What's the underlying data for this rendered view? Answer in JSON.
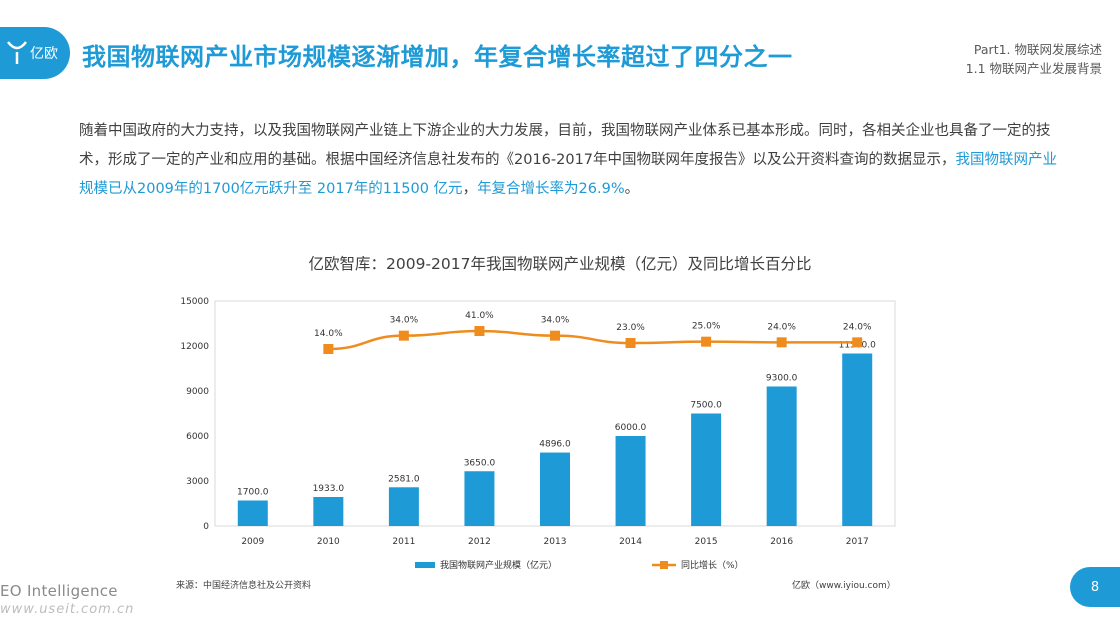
{
  "brand": {
    "logo_text": "亿欧"
  },
  "header": {
    "title": "我国物联网产业市场规模逐渐增加，年复合增长率超过了四分之一",
    "section_line1": "Part1. 物联网发展综述",
    "section_line2": "1.1 物联网产业发展背景"
  },
  "body": {
    "p1": "随着中国政府的大力支持，以及我国物联网产业链上下游企业的大力发展，目前，我国物联网产业体系已基本形成。同时，各相关企业也具备了一定的技术，形成了一定的产业和应用的基础。根据中国经济信息社发布的《2016-2017年中国物联网年度报告》以及公开资料查询的数据显示，",
    "highlight1": "我国物联网产业规模已从2009年的1700亿元跃升至 2017年的11500 亿元",
    "sep": "，",
    "highlight2": "年复合增长率为26.9%",
    "end": "。"
  },
  "chart_data": {
    "type": "bar",
    "title": "亿欧智库：2009-2017年我国物联网产业规模（亿元）及同比增长百分比",
    "categories": [
      "2009",
      "2010",
      "2011",
      "2012",
      "2013",
      "2014",
      "2015",
      "2016",
      "2017"
    ],
    "y_ticks": [
      "0",
      "3000",
      "6000",
      "9000",
      "12000",
      "15000"
    ],
    "ylim": [
      0,
      15000
    ],
    "series": [
      {
        "name": "我国物联网产业规模（亿元）",
        "type": "bar",
        "color": "#1e9ad6",
        "values": [
          1700.0,
          1933.0,
          2581.0,
          3650.0,
          4896.0,
          6000.0,
          7500.0,
          9300.0,
          11500.0
        ],
        "labels": [
          "1700.0",
          "1933.0",
          "2581.0",
          "3650.0",
          "4896.0",
          "6000.0",
          "7500.0",
          "9300.0",
          "11500.0"
        ]
      },
      {
        "name": "同比增长（%）",
        "type": "line",
        "color": "#f08c1e",
        "values": [
          null,
          14.0,
          34.0,
          41.0,
          34.0,
          23.0,
          25.0,
          24.0,
          24.0
        ],
        "labels": [
          "",
          "14.0%",
          "34.0%",
          "41.0%",
          "34.0%",
          "23.0%",
          "25.0%",
          "24.0%",
          "24.0%"
        ]
      }
    ],
    "legend_position": "bottom"
  },
  "footer": {
    "source": "来源：中国经济信息社及公开资料",
    "site": "亿欧（www.iyiou.com）",
    "eo": "EO Intelligence",
    "watermark": "www.useit.com.cn",
    "page": "8"
  }
}
